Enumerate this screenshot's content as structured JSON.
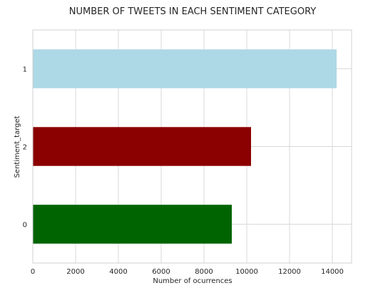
{
  "chart_data": {
    "type": "bar",
    "orientation": "horizontal",
    "title": "NUMBER OF TWEETS IN EACH SENTIMENT CATEGORY",
    "xlabel": "Number of ocurrences",
    "ylabel": "Sentiment_target",
    "categories": [
      "1",
      "2",
      "0"
    ],
    "values": [
      14200,
      10200,
      9300
    ],
    "colors": [
      "#add8e6",
      "#8b0000",
      "#006400"
    ],
    "xlim": [
      0,
      14900
    ],
    "xticks": [
      0,
      2000,
      4000,
      6000,
      8000,
      10000,
      12000,
      14000
    ],
    "grid": true
  }
}
